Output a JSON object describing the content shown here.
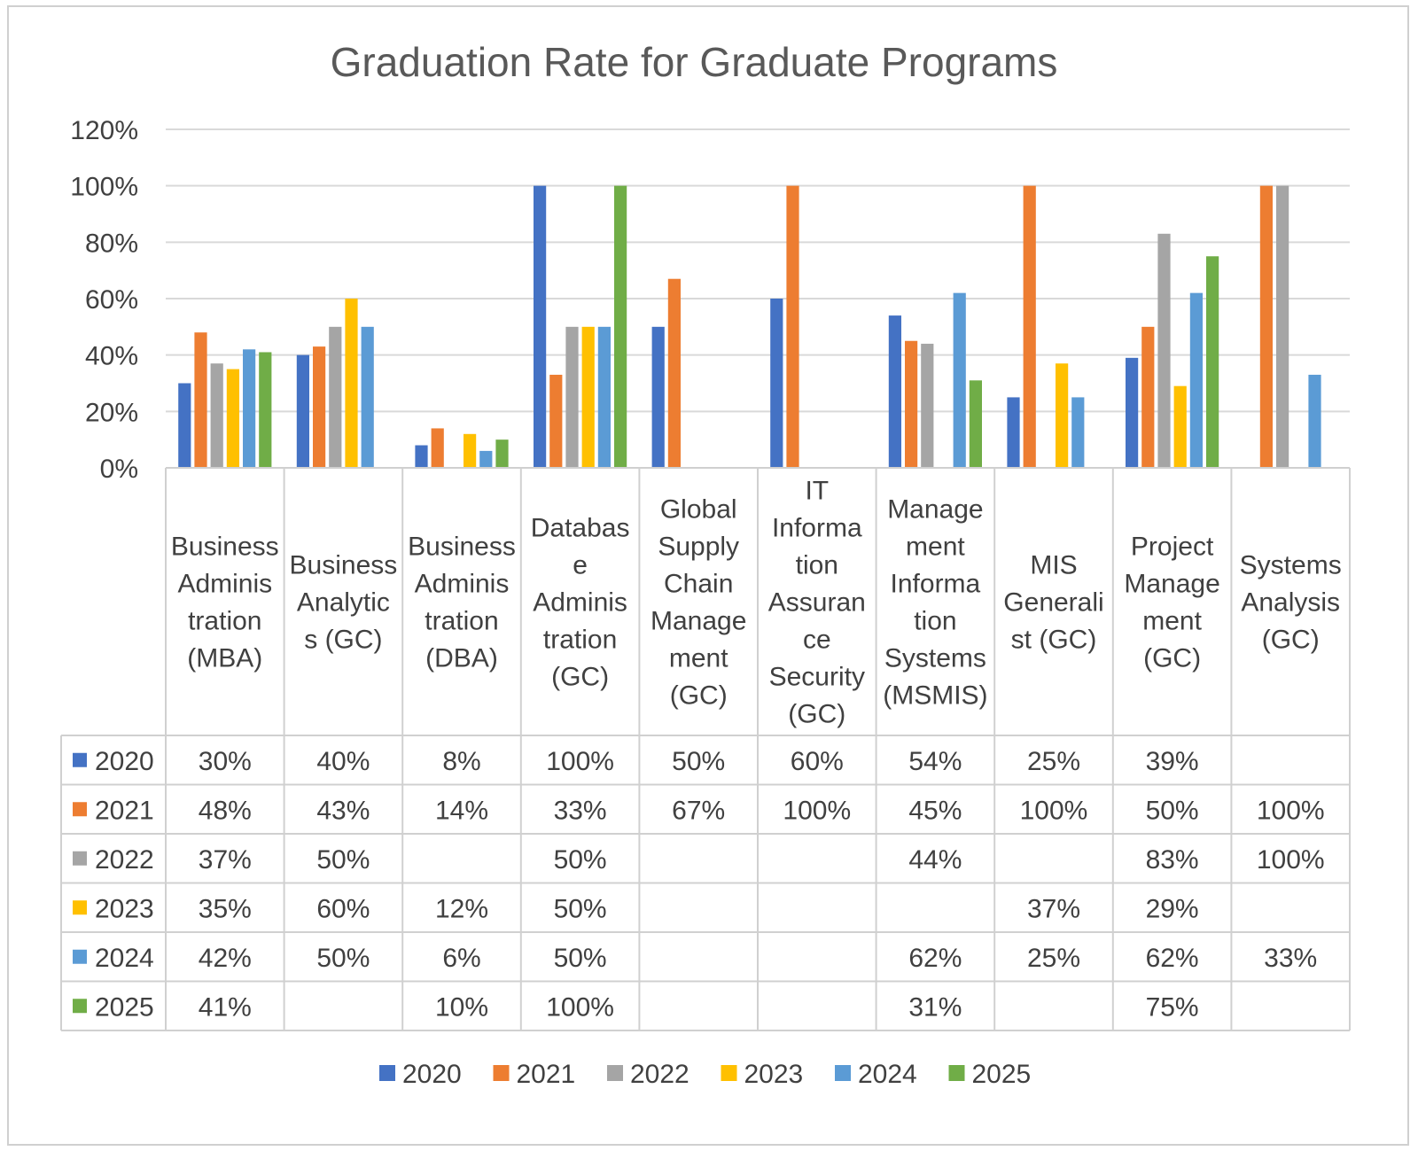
{
  "chart_data": {
    "type": "bar",
    "title": "Graduation Rate for Graduate Programs",
    "ylim": [
      0,
      120
    ],
    "y_ticks": [
      "0%",
      "20%",
      "40%",
      "60%",
      "80%",
      "100%",
      "120%"
    ],
    "y_tick_values": [
      0,
      20,
      40,
      60,
      80,
      100,
      120
    ],
    "grid": true,
    "legend_position": "bottom",
    "categories": [
      "Business Administration (MBA)",
      "Business Analytics (GC)",
      "Business Administration (DBA)",
      "Database Administration (GC)",
      "Global Supply Chain Management (GC)",
      "IT Information Assurance Security (GC)",
      "Management Information Systems (MSMIS)",
      "MIS Generalist (GC)",
      "Project Management (GC)",
      "Systems Analysis (GC)"
    ],
    "category_label_lines": [
      [
        "Business",
        "Adminis",
        "tration",
        "(MBA)"
      ],
      [
        "Business",
        "Analytic",
        "s (GC)"
      ],
      [
        "Business",
        "Adminis",
        "tration",
        "(DBA)"
      ],
      [
        "Databas",
        "e",
        "Adminis",
        "tration",
        "(GC)"
      ],
      [
        "Global",
        "Supply",
        "Chain",
        "Manage",
        "ment",
        "(GC)"
      ],
      [
        "IT",
        "Informa",
        "tion",
        "Assuran",
        "ce",
        "Security",
        "(GC)"
      ],
      [
        "Manage",
        "ment",
        "Informa",
        "tion",
        "Systems",
        "(MSMIS)"
      ],
      [
        "MIS",
        "Generali",
        "st (GC)"
      ],
      [
        "Project",
        "Manage",
        "ment",
        "(GC)"
      ],
      [
        "Systems",
        "Analysis",
        "(GC)"
      ]
    ],
    "series": [
      {
        "name": "2020",
        "color": "#4472C4",
        "values": [
          30,
          40,
          8,
          100,
          50,
          60,
          54,
          25,
          39,
          null
        ],
        "labels": [
          "30%",
          "40%",
          "8%",
          "100%",
          "50%",
          "60%",
          "54%",
          "25%",
          "39%",
          ""
        ]
      },
      {
        "name": "2021",
        "color": "#ED7D31",
        "values": [
          48,
          43,
          14,
          33,
          67,
          100,
          45,
          100,
          50,
          100
        ],
        "labels": [
          "48%",
          "43%",
          "14%",
          "33%",
          "67%",
          "100%",
          "45%",
          "100%",
          "50%",
          "100%"
        ]
      },
      {
        "name": "2022",
        "color": "#A5A5A5",
        "values": [
          37,
          50,
          null,
          50,
          null,
          null,
          44,
          null,
          83,
          100
        ],
        "labels": [
          "37%",
          "50%",
          "",
          "50%",
          "",
          "",
          "44%",
          "",
          "83%",
          "100%"
        ]
      },
      {
        "name": "2023",
        "color": "#FFC000",
        "values": [
          35,
          60,
          12,
          50,
          null,
          null,
          null,
          37,
          29,
          null
        ],
        "labels": [
          "35%",
          "60%",
          "12%",
          "50%",
          "",
          "",
          "",
          "37%",
          "29%",
          ""
        ]
      },
      {
        "name": "2024",
        "color": "#5B9BD5",
        "values": [
          42,
          50,
          6,
          50,
          null,
          null,
          62,
          25,
          62,
          33
        ],
        "labels": [
          "42%",
          "50%",
          "6%",
          "50%",
          "",
          "",
          "62%",
          "25%",
          "62%",
          "33%"
        ]
      },
      {
        "name": "2025",
        "color": "#70AD47",
        "values": [
          41,
          null,
          10,
          100,
          null,
          null,
          31,
          null,
          75,
          null
        ],
        "labels": [
          "41%",
          "",
          "10%",
          "100%",
          "",
          "",
          "31%",
          "",
          "75%",
          ""
        ]
      }
    ]
  }
}
